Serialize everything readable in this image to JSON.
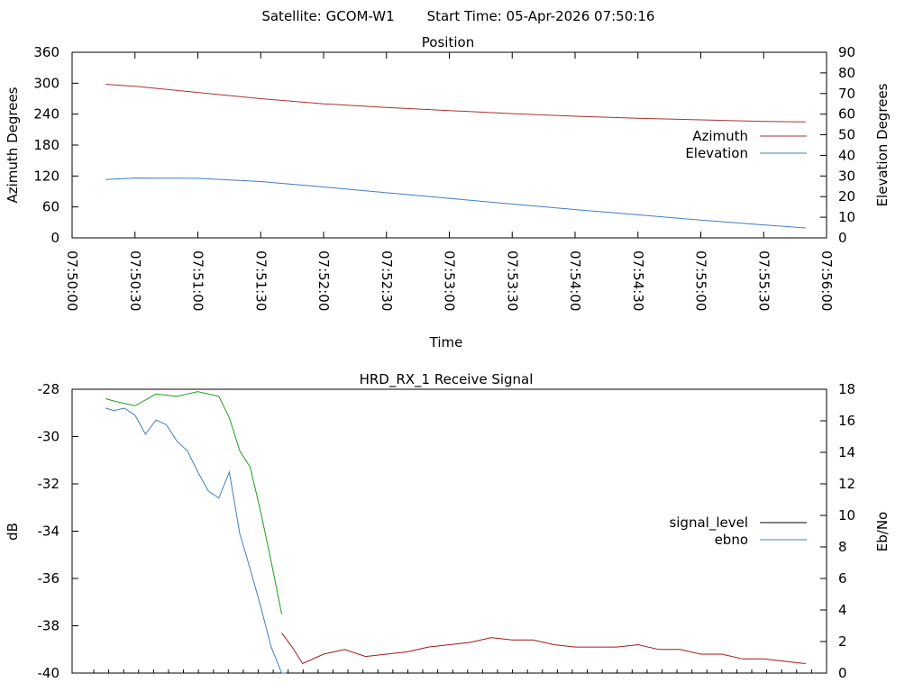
{
  "header": {
    "satellite_label": "Satellite: GCOM-W1",
    "start_time_label": "Start Time: 05-Apr-2026 07:50:16"
  },
  "colors": {
    "azimuth": "#a83232",
    "elevation": "#3f7fbf",
    "signal_level": "#000000",
    "ebno": "#3f7fbf",
    "red_trace": "#a01a1a",
    "green_trace": "#1aa01a"
  },
  "chart_data": [
    {
      "type": "line",
      "title": "Position",
      "xlabel": "Time",
      "ylabel": "Azimuth Degrees",
      "y2label": "Elevation Degrees",
      "xlim": [
        "07:50:00",
        "07:56:00"
      ],
      "ylim": [
        0,
        360
      ],
      "y2lim": [
        0,
        90
      ],
      "x_ticks": [
        "07:50:00",
        "07:50:30",
        "07:51:00",
        "07:51:30",
        "07:52:00",
        "07:52:30",
        "07:53:00",
        "07:53:30",
        "07:54:00",
        "07:54:30",
        "07:55:00",
        "07:55:30",
        "07:56:00"
      ],
      "y_ticks": [
        "0",
        "60",
        "120",
        "180",
        "240",
        "300",
        "360"
      ],
      "y2_ticks": [
        "0",
        "10",
        "20",
        "30",
        "40",
        "50",
        "60",
        "70",
        "80",
        "90"
      ],
      "grid": false,
      "legend_position": "right",
      "series": [
        {
          "name": "Azimuth",
          "axis": "y",
          "x": [
            "07:50:16",
            "07:50:30",
            "07:51:00",
            "07:51:30",
            "07:52:00",
            "07:52:30",
            "07:53:00",
            "07:53:30",
            "07:54:00",
            "07:54:30",
            "07:55:00",
            "07:55:30",
            "07:55:50"
          ],
          "y": [
            298,
            294,
            282,
            270,
            260,
            253,
            247,
            241,
            236,
            232,
            229,
            226,
            225
          ]
        },
        {
          "name": "Elevation",
          "axis": "y2",
          "x": [
            "07:50:16",
            "07:50:30",
            "07:51:00",
            "07:51:30",
            "07:52:00",
            "07:52:30",
            "07:53:00",
            "07:53:30",
            "07:54:00",
            "07:54:30",
            "07:55:00",
            "07:55:30",
            "07:55:50"
          ],
          "y": [
            28.3,
            29.0,
            28.9,
            27.3,
            24.7,
            21.9,
            19.2,
            16.4,
            13.7,
            11.2,
            8.6,
            6.3,
            4.8
          ]
        }
      ]
    },
    {
      "type": "line",
      "title": "HRD_RX_1 Receive Signal",
      "ylabel": "dB",
      "y2label": "Eb/No",
      "ylim": [
        -40,
        -28
      ],
      "y2lim": [
        0,
        18
      ],
      "y_ticks": [
        "-40",
        "-38",
        "-36",
        "-34",
        "-32",
        "-30",
        "-28"
      ],
      "y2_ticks": [
        "0",
        "2",
        "4",
        "6",
        "8",
        "10",
        "12",
        "14",
        "16",
        "18"
      ],
      "x_minor_ticks": 49,
      "grid": false,
      "legend_position": "right",
      "legend": [
        {
          "name": "signal_level"
        },
        {
          "name": "ebno"
        }
      ],
      "series": [
        {
          "name": "green trace",
          "axis": "y",
          "x": [
            "07:50:16",
            "07:50:20",
            "07:50:30",
            "07:50:40",
            "07:50:50",
            "07:51:00",
            "07:51:10",
            "07:51:15",
            "07:51:20",
            "07:51:25",
            "07:51:30",
            "07:51:35",
            "07:51:40"
          ],
          "y": [
            -28.4,
            -28.5,
            -28.7,
            -28.2,
            -28.3,
            -28.1,
            -28.3,
            -29.2,
            -30.6,
            -31.3,
            -33.2,
            -35.3,
            -37.5
          ]
        },
        {
          "name": "blue trace",
          "axis": "y",
          "x": [
            "07:50:16",
            "07:50:20",
            "07:50:25",
            "07:50:30",
            "07:50:35",
            "07:50:40",
            "07:50:45",
            "07:50:50",
            "07:50:55",
            "07:51:00",
            "07:51:05",
            "07:51:10",
            "07:51:15",
            "07:51:20",
            "07:51:25",
            "07:51:30",
            "07:51:35",
            "07:51:40",
            "07:51:42"
          ],
          "y": [
            -28.8,
            -28.9,
            -28.8,
            -29.1,
            -29.9,
            -29.3,
            -29.5,
            -30.2,
            -30.6,
            -31.5,
            -32.3,
            -32.6,
            -31.5,
            -34.1,
            -35.6,
            -37.2,
            -38.9,
            -40.0,
            -40.0
          ]
        },
        {
          "name": "red trace",
          "axis": "y",
          "x": [
            "07:51:40",
            "07:51:45",
            "07:51:50",
            "07:52:00",
            "07:52:10",
            "07:52:20",
            "07:52:30",
            "07:52:40",
            "07:52:50",
            "07:53:00",
            "07:53:10",
            "07:53:20",
            "07:53:30",
            "07:53:40",
            "07:53:50",
            "07:54:00",
            "07:54:10",
            "07:54:20",
            "07:54:30",
            "07:54:40",
            "07:54:50",
            "07:55:00",
            "07:55:10",
            "07:55:20",
            "07:55:30",
            "07:55:40",
            "07:55:50"
          ],
          "y": [
            -38.3,
            -38.9,
            -39.6,
            -39.2,
            -39.0,
            -39.3,
            -39.2,
            -39.1,
            -38.9,
            -38.8,
            -38.7,
            -38.5,
            -38.6,
            -38.6,
            -38.8,
            -38.9,
            -38.9,
            -38.9,
            -38.8,
            -39.0,
            -39.0,
            -39.2,
            -39.2,
            -39.4,
            -39.4,
            -39.5,
            -39.6
          ]
        }
      ]
    }
  ]
}
